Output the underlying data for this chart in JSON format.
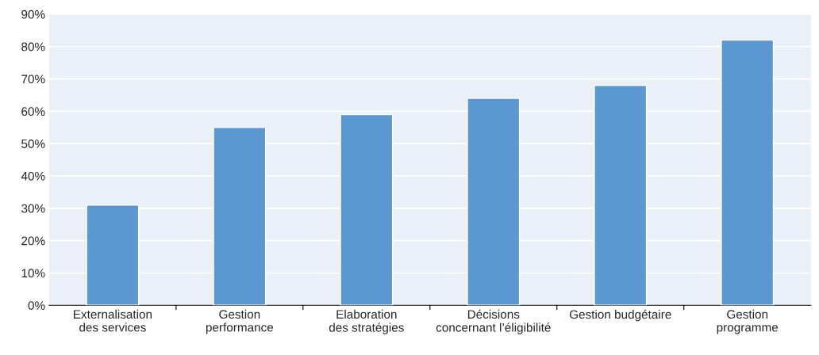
{
  "chart_data": {
    "type": "bar",
    "categories": [
      "Externalisation\ndes services",
      "Gestion\nperformance",
      "Elaboration\ndes stratégies",
      "Décisions\nconcernant l’éligibilité",
      "Gestion budgétaire",
      "Gestion\nprogramme"
    ],
    "values": [
      31,
      55,
      59,
      64,
      68,
      82
    ],
    "color": "#5b97d0",
    "ylim": [
      0,
      90
    ],
    "yticks": [
      {
        "value": 0,
        "label": "0%"
      },
      {
        "value": 10,
        "label": "10%"
      },
      {
        "value": 20,
        "label": "20%"
      },
      {
        "value": 30,
        "label": "30%"
      },
      {
        "value": 40,
        "label": "40%"
      },
      {
        "value": 50,
        "label": "50%"
      },
      {
        "value": 60,
        "label": "60%"
      },
      {
        "value": 70,
        "label": "70%"
      },
      {
        "value": 80,
        "label": "80%"
      },
      {
        "value": 90,
        "label": "90%"
      }
    ],
    "grid": "y"
  }
}
